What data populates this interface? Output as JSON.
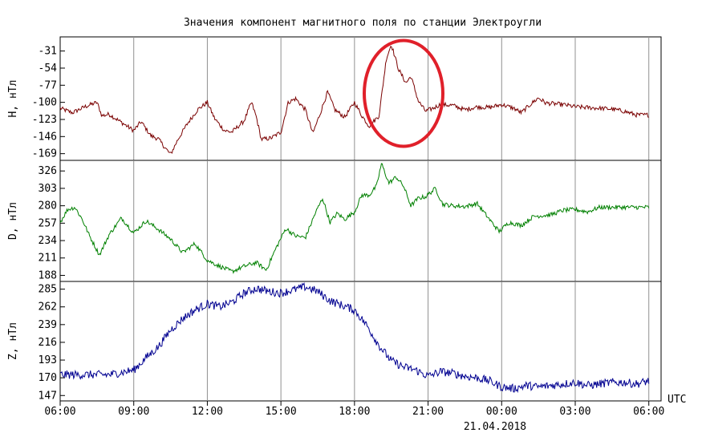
{
  "chart_data": {
    "type": "line",
    "title": "Значения компонент магнитного поля по станции Электроугли",
    "date_label": "21.04.2018",
    "x_unit": "UTC",
    "x_ticks": [
      "06:00",
      "09:00",
      "12:00",
      "15:00",
      "18:00",
      "21:00",
      "00:00",
      "03:00",
      "06:00"
    ],
    "x_range_hours": [
      6,
      30.5
    ],
    "grid": true,
    "annotation": {
      "type": "ellipse",
      "color": "#e0202a",
      "center_hours": 20.0,
      "center_value_h": -88,
      "panel": "H"
    },
    "panels": [
      {
        "name": "H",
        "ylabel": "H, нТл",
        "color": "#7a0000",
        "ylim": [
          -178,
          -12
        ],
        "yticks": [
          "-31",
          "-54",
          "-77",
          "-100",
          "-123",
          "-146",
          "-169"
        ],
        "ytick_values": [
          -31,
          -54,
          -77,
          -100,
          -123,
          -146,
          -169
        ],
        "points": [
          [
            6.0,
            -108
          ],
          [
            6.5,
            -114
          ],
          [
            7.0,
            -106
          ],
          [
            7.5,
            -100
          ],
          [
            7.7,
            -118
          ],
          [
            8.0,
            -116
          ],
          [
            8.5,
            -127
          ],
          [
            9.0,
            -138
          ],
          [
            9.3,
            -126
          ],
          [
            9.7,
            -145
          ],
          [
            10.0,
            -149
          ],
          [
            10.3,
            -162
          ],
          [
            10.5,
            -170
          ],
          [
            10.8,
            -150
          ],
          [
            11.2,
            -128
          ],
          [
            11.6,
            -110
          ],
          [
            12.0,
            -100
          ],
          [
            12.3,
            -122
          ],
          [
            12.7,
            -138
          ],
          [
            13.0,
            -140
          ],
          [
            13.5,
            -125
          ],
          [
            13.8,
            -100
          ],
          [
            14.0,
            -120
          ],
          [
            14.2,
            -150
          ],
          [
            14.6,
            -148
          ],
          [
            15.0,
            -140
          ],
          [
            15.3,
            -100
          ],
          [
            15.6,
            -95
          ],
          [
            16.0,
            -110
          ],
          [
            16.3,
            -142
          ],
          [
            16.6,
            -115
          ],
          [
            16.9,
            -86
          ],
          [
            17.2,
            -110
          ],
          [
            17.6,
            -120
          ],
          [
            18.0,
            -100
          ],
          [
            18.3,
            -118
          ],
          [
            18.6,
            -132
          ],
          [
            19.0,
            -118
          ],
          [
            19.3,
            -41
          ],
          [
            19.5,
            -22
          ],
          [
            19.8,
            -56
          ],
          [
            20.1,
            -74
          ],
          [
            20.3,
            -65
          ],
          [
            20.6,
            -98
          ],
          [
            20.9,
            -112
          ],
          [
            21.2,
            -108
          ],
          [
            21.5,
            -103
          ],
          [
            22.0,
            -104
          ],
          [
            22.5,
            -110
          ],
          [
            23.0,
            -106
          ],
          [
            23.5,
            -107
          ],
          [
            24.0,
            -103
          ],
          [
            24.5,
            -108
          ],
          [
            24.8,
            -114
          ],
          [
            25.2,
            -102
          ],
          [
            25.5,
            -94
          ],
          [
            25.8,
            -101
          ],
          [
            26.5,
            -103
          ],
          [
            27.0,
            -106
          ],
          [
            27.5,
            -107
          ],
          [
            28.0,
            -108
          ],
          [
            28.5,
            -109
          ],
          [
            29.0,
            -112
          ],
          [
            29.5,
            -117
          ],
          [
            30.0,
            -117
          ]
        ]
      },
      {
        "name": "D",
        "ylabel": "D, нТл",
        "color": "#008000",
        "ylim": [
          180,
          340
        ],
        "yticks": [
          "326",
          "303",
          "280",
          "257",
          "234",
          "211",
          "188"
        ],
        "ytick_values": [
          326,
          303,
          280,
          257,
          234,
          211,
          188
        ],
        "points": [
          [
            6.0,
            258
          ],
          [
            6.3,
            275
          ],
          [
            6.6,
            278
          ],
          [
            6.9,
            262
          ],
          [
            7.2,
            240
          ],
          [
            7.6,
            215
          ],
          [
            8.0,
            242
          ],
          [
            8.5,
            264
          ],
          [
            9.0,
            244
          ],
          [
            9.5,
            260
          ],
          [
            10.0,
            249
          ],
          [
            10.5,
            236
          ],
          [
            11.0,
            218
          ],
          [
            11.5,
            230
          ],
          [
            12.0,
            208
          ],
          [
            12.5,
            200
          ],
          [
            13.0,
            193
          ],
          [
            13.5,
            200
          ],
          [
            14.0,
            205
          ],
          [
            14.4,
            195
          ],
          [
            14.8,
            224
          ],
          [
            15.2,
            250
          ],
          [
            15.6,
            240
          ],
          [
            16.0,
            238
          ],
          [
            16.4,
            270
          ],
          [
            16.7,
            290
          ],
          [
            17.0,
            258
          ],
          [
            17.3,
            270
          ],
          [
            17.6,
            262
          ],
          [
            18.0,
            272
          ],
          [
            18.3,
            294
          ],
          [
            18.6,
            294
          ],
          [
            18.9,
            306
          ],
          [
            19.1,
            336
          ],
          [
            19.4,
            310
          ],
          [
            19.7,
            318
          ],
          [
            20.0,
            306
          ],
          [
            20.3,
            280
          ],
          [
            20.6,
            290
          ],
          [
            20.9,
            292
          ],
          [
            21.3,
            303
          ],
          [
            21.6,
            282
          ],
          [
            22.0,
            280
          ],
          [
            22.5,
            279
          ],
          [
            23.0,
            283
          ],
          [
            23.5,
            262
          ],
          [
            23.9,
            246
          ],
          [
            24.3,
            258
          ],
          [
            24.8,
            254
          ],
          [
            25.3,
            266
          ],
          [
            26.0,
            268
          ],
          [
            26.5,
            274
          ],
          [
            27.0,
            275
          ],
          [
            27.5,
            272
          ],
          [
            28.0,
            278
          ],
          [
            28.5,
            278
          ],
          [
            29.0,
            278
          ],
          [
            29.5,
            278
          ],
          [
            30.0,
            278
          ]
        ]
      },
      {
        "name": "Z",
        "ylabel": "Z, нТл",
        "color": "#000090",
        "ylim": [
          140,
          295
        ],
        "yticks": [
          "285",
          "262",
          "239",
          "216",
          "193",
          "170",
          "147"
        ],
        "ytick_values": [
          285,
          262,
          239,
          216,
          193,
          170,
          147
        ],
        "points": [
          [
            6.0,
            174
          ],
          [
            7.0,
            174
          ],
          [
            8.0,
            174
          ],
          [
            9.0,
            180
          ],
          [
            9.5,
            196
          ],
          [
            10.0,
            210
          ],
          [
            10.5,
            232
          ],
          [
            11.0,
            247
          ],
          [
            11.5,
            258
          ],
          [
            12.0,
            266
          ],
          [
            12.5,
            262
          ],
          [
            13.0,
            268
          ],
          [
            13.5,
            280
          ],
          [
            14.0,
            286
          ],
          [
            14.5,
            282
          ],
          [
            15.0,
            280
          ],
          [
            15.5,
            284
          ],
          [
            16.0,
            288
          ],
          [
            16.5,
            282
          ],
          [
            17.0,
            270
          ],
          [
            17.5,
            264
          ],
          [
            18.0,
            258
          ],
          [
            18.5,
            238
          ],
          [
            19.0,
            212
          ],
          [
            19.5,
            192
          ],
          [
            20.0,
            184
          ],
          [
            20.5,
            180
          ],
          [
            21.0,
            172
          ],
          [
            21.5,
            178
          ],
          [
            22.0,
            176
          ],
          [
            22.5,
            172
          ],
          [
            23.0,
            170
          ],
          [
            23.5,
            166
          ],
          [
            24.0,
            158
          ],
          [
            24.5,
            156
          ],
          [
            25.0,
            160
          ],
          [
            25.5,
            158
          ],
          [
            26.0,
            160
          ],
          [
            26.5,
            162
          ],
          [
            27.0,
            164
          ],
          [
            27.5,
            160
          ],
          [
            28.0,
            162
          ],
          [
            28.5,
            164
          ],
          [
            29.0,
            164
          ],
          [
            29.5,
            162
          ],
          [
            30.0,
            166
          ]
        ]
      }
    ]
  }
}
